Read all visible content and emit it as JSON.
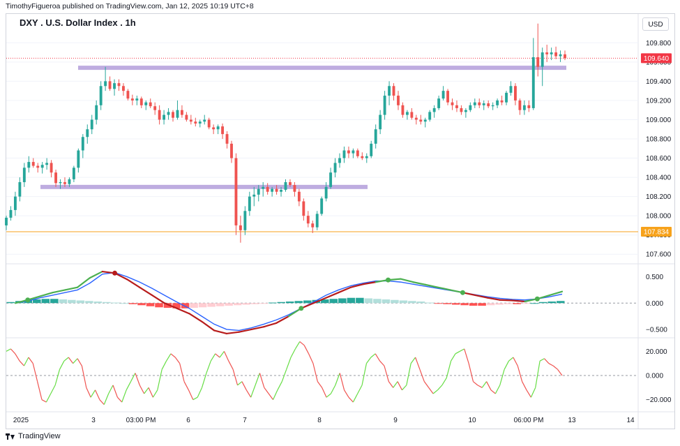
{
  "header": {
    "published": "TimothyFigueroa published on TradingView.com, Jan 12, 2025 10:19 UTC+8",
    "symbol_title": "DXY . U.S. Dollar Index . 1h",
    "currency": "USD"
  },
  "footer": {
    "brand": "TradingView"
  },
  "colors": {
    "up": "#26a69a",
    "down": "#ef5350",
    "support_band": "#b39ddb",
    "current_line": "#f23645",
    "horizontal_line": "#f7a21b",
    "macd_fast": "#4caf50",
    "macd_fast_down": "#b71c1c",
    "macd_signal": "#2962ff",
    "osc_up": "#66dd44",
    "osc_down": "#ef5350",
    "grid": "#f0f3fa"
  },
  "chart_data": [
    {
      "type": "candlestick",
      "title": "DXY . U.S. Dollar Index . 1h",
      "ylim": [
        107.5,
        110.1
      ],
      "y_ticks": [
        "107.600",
        "107.800",
        "108.000",
        "108.200",
        "108.400",
        "108.600",
        "108.800",
        "109.000",
        "109.200",
        "109.400",
        "109.600",
        "109.800"
      ],
      "x_ticks": [
        "2025",
        "3",
        "03:00 PM",
        "6",
        "7",
        "8",
        "9",
        "10",
        "06:00 PM",
        "13",
        "14"
      ],
      "current_price": {
        "value": 109.64,
        "label": "109.640"
      },
      "horizontal_line": {
        "value": 107.834,
        "label": "107.834"
      },
      "zones": [
        {
          "from": "2025-01-03 00:00",
          "to": "2025-01-12 06:00",
          "price": 109.54
        },
        {
          "from": "2025-01-02 00:00",
          "to": "2025-01-08 12:00",
          "price": 108.3
        }
      ],
      "candles": [
        [
          107.9,
          108.0,
          107.85,
          107.98
        ],
        [
          107.98,
          108.1,
          107.95,
          108.06
        ],
        [
          108.06,
          108.25,
          108.0,
          108.2
        ],
        [
          108.2,
          108.4,
          108.15,
          108.35
        ],
        [
          108.35,
          108.55,
          108.3,
          108.5
        ],
        [
          108.5,
          108.62,
          108.45,
          108.56
        ],
        [
          108.56,
          108.6,
          108.5,
          108.52
        ],
        [
          108.52,
          108.55,
          108.45,
          108.5
        ],
        [
          108.5,
          108.56,
          108.44,
          108.53
        ],
        [
          108.53,
          108.6,
          108.48,
          108.55
        ],
        [
          108.55,
          108.58,
          108.4,
          108.45
        ],
        [
          108.45,
          108.48,
          108.3,
          108.34
        ],
        [
          108.34,
          108.38,
          108.28,
          108.35
        ],
        [
          108.35,
          108.4,
          108.3,
          108.33
        ],
        [
          108.33,
          108.4,
          108.3,
          108.38
        ],
        [
          108.38,
          108.52,
          108.35,
          108.5
        ],
        [
          108.5,
          108.7,
          108.45,
          108.68
        ],
        [
          108.68,
          108.85,
          108.6,
          108.82
        ],
        [
          108.82,
          108.95,
          108.75,
          108.9
        ],
        [
          108.9,
          109.05,
          108.85,
          109.0
        ],
        [
          109.0,
          109.2,
          108.95,
          109.15
        ],
        [
          109.15,
          109.4,
          109.1,
          109.35
        ],
        [
          109.35,
          109.55,
          109.3,
          109.4
        ],
        [
          109.4,
          109.45,
          109.3,
          109.32
        ],
        [
          109.32,
          109.42,
          109.25,
          109.38
        ],
        [
          109.38,
          109.42,
          109.3,
          109.35
        ],
        [
          109.35,
          109.38,
          109.25,
          109.3
        ],
        [
          109.3,
          109.32,
          109.2,
          109.22
        ],
        [
          109.22,
          109.26,
          109.15,
          109.2
        ],
        [
          109.2,
          109.25,
          109.15,
          109.22
        ],
        [
          109.22,
          109.24,
          109.12,
          109.15
        ],
        [
          109.15,
          109.2,
          109.1,
          109.18
        ],
        [
          109.18,
          109.22,
          109.12,
          109.14
        ],
        [
          109.14,
          109.18,
          109.05,
          109.1
        ],
        [
          109.1,
          109.15,
          108.95,
          109.0
        ],
        [
          109.0,
          109.1,
          108.95,
          109.05
        ],
        [
          109.05,
          109.12,
          109.0,
          109.08
        ],
        [
          109.08,
          109.1,
          108.98,
          109.02
        ],
        [
          109.02,
          109.2,
          109.0,
          109.1
        ],
        [
          109.1,
          109.15,
          109.02,
          109.05
        ],
        [
          109.05,
          109.08,
          108.98,
          109.0
        ],
        [
          109.0,
          109.05,
          108.95,
          108.98
        ],
        [
          108.98,
          109.02,
          108.93,
          108.96
        ],
        [
          108.96,
          109.0,
          108.92,
          108.98
        ],
        [
          108.98,
          109.05,
          108.95,
          109.0
        ],
        [
          109.0,
          109.02,
          108.9,
          108.92
        ],
        [
          108.92,
          108.95,
          108.85,
          108.9
        ],
        [
          108.9,
          108.95,
          108.85,
          108.93
        ],
        [
          108.93,
          108.96,
          108.8,
          108.85
        ],
        [
          108.85,
          108.88,
          108.7,
          108.75
        ],
        [
          108.75,
          108.78,
          108.55,
          108.6
        ],
        [
          108.6,
          108.65,
          107.8,
          107.9
        ],
        [
          107.9,
          108.0,
          107.72,
          107.85
        ],
        [
          107.85,
          108.1,
          107.8,
          108.05
        ],
        [
          108.05,
          108.25,
          108.0,
          108.2
        ],
        [
          108.2,
          108.3,
          108.1,
          108.22
        ],
        [
          108.22,
          108.32,
          108.15,
          108.28
        ],
        [
          108.28,
          108.35,
          108.2,
          108.3
        ],
        [
          108.3,
          108.34,
          108.22,
          108.25
        ],
        [
          108.25,
          108.3,
          108.2,
          108.28
        ],
        [
          108.28,
          108.32,
          108.22,
          108.25
        ],
        [
          108.25,
          108.3,
          108.2,
          108.27
        ],
        [
          108.27,
          108.38,
          108.25,
          108.35
        ],
        [
          108.35,
          108.38,
          108.3,
          108.32
        ],
        [
          108.32,
          108.35,
          108.2,
          108.25
        ],
        [
          108.25,
          108.28,
          108.1,
          108.15
        ],
        [
          108.15,
          108.18,
          107.95,
          108.0
        ],
        [
          108.0,
          108.05,
          107.88,
          107.92
        ],
        [
          107.92,
          107.95,
          107.82,
          107.88
        ],
        [
          107.88,
          108.05,
          107.85,
          108.02
        ],
        [
          108.02,
          108.2,
          108.0,
          108.18
        ],
        [
          108.18,
          108.35,
          108.15,
          108.3
        ],
        [
          108.3,
          108.5,
          108.28,
          108.45
        ],
        [
          108.45,
          108.6,
          108.4,
          108.55
        ],
        [
          108.55,
          108.65,
          108.5,
          108.6
        ],
        [
          108.6,
          108.72,
          108.55,
          108.68
        ],
        [
          108.68,
          108.72,
          108.6,
          108.65
        ],
        [
          108.65,
          108.7,
          108.6,
          108.68
        ],
        [
          108.68,
          108.7,
          108.6,
          108.62
        ],
        [
          108.62,
          108.66,
          108.58,
          108.6
        ],
        [
          108.6,
          108.65,
          108.55,
          108.62
        ],
        [
          108.62,
          108.78,
          108.6,
          108.75
        ],
        [
          108.75,
          108.95,
          108.7,
          108.9
        ],
        [
          108.9,
          109.1,
          108.85,
          109.05
        ],
        [
          109.05,
          109.3,
          109.0,
          109.25
        ],
        [
          109.25,
          109.4,
          109.15,
          109.35
        ],
        [
          109.35,
          109.38,
          109.2,
          109.25
        ],
        [
          109.25,
          109.3,
          109.1,
          109.15
        ],
        [
          109.15,
          109.18,
          109.02,
          109.05
        ],
        [
          109.05,
          109.1,
          109.0,
          109.08
        ],
        [
          109.08,
          109.12,
          109.0,
          109.02
        ],
        [
          109.02,
          109.05,
          108.95,
          109.0
        ],
        [
          109.0,
          109.05,
          108.95,
          108.98
        ],
        [
          108.98,
          109.02,
          108.92,
          109.0
        ],
        [
          109.0,
          109.1,
          108.98,
          109.08
        ],
        [
          109.08,
          109.15,
          109.02,
          109.12
        ],
        [
          109.12,
          109.25,
          109.1,
          109.22
        ],
        [
          109.22,
          109.35,
          109.2,
          109.3
        ],
        [
          109.3,
          109.32,
          109.15,
          109.18
        ],
        [
          109.18,
          109.22,
          109.1,
          109.15
        ],
        [
          109.15,
          109.2,
          109.08,
          109.12
        ],
        [
          109.12,
          109.15,
          109.05,
          109.08
        ],
        [
          109.08,
          109.12,
          109.02,
          109.1
        ],
        [
          109.1,
          109.18,
          109.08,
          109.15
        ],
        [
          109.15,
          109.22,
          109.12,
          109.18
        ],
        [
          109.18,
          109.22,
          109.12,
          109.15
        ],
        [
          109.15,
          109.2,
          109.1,
          109.17
        ],
        [
          109.17,
          109.2,
          109.12,
          109.14
        ],
        [
          109.14,
          109.18,
          109.1,
          109.15
        ],
        [
          109.15,
          109.22,
          109.12,
          109.2
        ],
        [
          109.2,
          109.25,
          109.15,
          109.18
        ],
        [
          109.18,
          109.3,
          109.15,
          109.28
        ],
        [
          109.28,
          109.4,
          109.25,
          109.35
        ],
        [
          109.35,
          109.38,
          109.15,
          109.2
        ],
        [
          109.2,
          109.22,
          109.05,
          109.1
        ],
        [
          109.1,
          109.2,
          109.05,
          109.15
        ],
        [
          109.15,
          109.2,
          109.08,
          109.12
        ],
        [
          109.12,
          109.85,
          109.1,
          109.65
        ],
        [
          109.65,
          110.0,
          109.45,
          109.55
        ],
        [
          109.55,
          109.75,
          109.35,
          109.7
        ],
        [
          109.7,
          109.78,
          109.6,
          109.68
        ],
        [
          109.68,
          109.75,
          109.62,
          109.7
        ],
        [
          109.7,
          109.76,
          109.63,
          109.66
        ],
        [
          109.66,
          109.72,
          109.6,
          109.68
        ],
        [
          109.68,
          109.72,
          109.62,
          109.64
        ]
      ]
    },
    {
      "type": "macd",
      "y_ticks": [
        "0.500",
        "0.000",
        "−0.500"
      ],
      "ylim": [
        -0.66,
        0.72
      ],
      "histogram": [
        0.02,
        0.04,
        0.06,
        0.07,
        0.08,
        0.08,
        0.07,
        0.06,
        0.05,
        0.04,
        0.03,
        0.02,
        0.01,
        0.0,
        -0.02,
        -0.04,
        -0.06,
        -0.08,
        -0.09,
        -0.1,
        -0.1,
        -0.09,
        -0.08,
        -0.07,
        -0.06,
        -0.05,
        -0.04,
        -0.03,
        -0.02,
        -0.01,
        0.01,
        0.02,
        0.03,
        0.04,
        0.05,
        0.06,
        0.07,
        0.08,
        0.09,
        0.1,
        0.1,
        0.09,
        0.08,
        0.07,
        0.06,
        0.05,
        0.04,
        0.03,
        0.01,
        -0.01,
        -0.02,
        -0.03,
        -0.04,
        -0.05,
        -0.05,
        -0.04,
        -0.03,
        -0.02,
        -0.02,
        -0.01,
        0.0,
        0.02,
        0.03,
        0.04
      ],
      "fast": [
        0.0,
        0.06,
        0.13,
        0.2,
        0.25,
        0.3,
        0.48,
        0.6,
        0.57,
        0.45,
        0.3,
        0.15,
        0.0,
        -0.1,
        -0.2,
        -0.35,
        -0.52,
        -0.58,
        -0.55,
        -0.5,
        -0.45,
        -0.38,
        -0.25,
        -0.1,
        0.0,
        0.1,
        0.2,
        0.3,
        0.36,
        0.4,
        0.44,
        0.46,
        0.4,
        0.35,
        0.3,
        0.25,
        0.2,
        0.15,
        0.1,
        0.06,
        0.05,
        0.03,
        0.08,
        0.15,
        0.22
      ],
      "signal": [
        0.0,
        0.04,
        0.1,
        0.15,
        0.2,
        0.25,
        0.38,
        0.55,
        0.58,
        0.5,
        0.4,
        0.28,
        0.15,
        0.02,
        -0.1,
        -0.25,
        -0.4,
        -0.5,
        -0.52,
        -0.47,
        -0.4,
        -0.32,
        -0.22,
        -0.1,
        0.02,
        0.15,
        0.25,
        0.33,
        0.38,
        0.42,
        0.42,
        0.4,
        0.36,
        0.32,
        0.28,
        0.24,
        0.2,
        0.16,
        0.12,
        0.09,
        0.07,
        0.06,
        0.08,
        0.12,
        0.17
      ]
    },
    {
      "type": "line",
      "y_ticks": [
        "20.000",
        "0.000",
        "−20.000"
      ],
      "ylim": [
        -30,
        30
      ],
      "values": [
        20,
        22,
        18,
        12,
        8,
        15,
        10,
        -5,
        -20,
        -22,
        -15,
        -8,
        5,
        12,
        15,
        10,
        14,
        8,
        -10,
        -18,
        -12,
        -20,
        -24,
        -15,
        -8,
        -18,
        -22,
        -12,
        -5,
        2,
        -8,
        -15,
        -10,
        -18,
        -12,
        5,
        12,
        18,
        15,
        10,
        -5,
        -12,
        -20,
        -18,
        -10,
        2,
        12,
        18,
        15,
        20,
        12,
        5,
        -8,
        -5,
        -12,
        -18,
        -8,
        2,
        -10,
        -15,
        -20,
        -12,
        -5,
        5,
        15,
        22,
        28,
        25,
        18,
        10,
        -5,
        -10,
        -18,
        -15,
        -8,
        2,
        -12,
        -18,
        -22,
        -15,
        -8,
        10,
        15,
        18,
        12,
        8,
        -5,
        -10,
        -5,
        -12,
        -8,
        10,
        15,
        5,
        -5,
        -10,
        -15,
        -12,
        -8,
        -2,
        12,
        18,
        20,
        22,
        10,
        -5,
        -8,
        -10,
        -5,
        -12,
        -15,
        -8,
        5,
        12,
        15,
        8,
        -5,
        -12,
        -18,
        -10,
        12,
        14,
        10,
        8,
        5,
        0
      ]
    }
  ]
}
